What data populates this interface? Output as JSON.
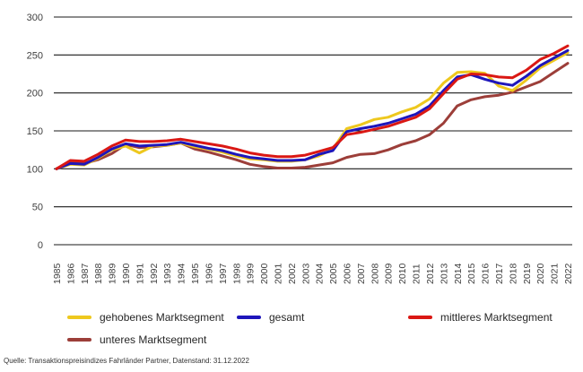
{
  "chart_data": {
    "type": "line",
    "title": "",
    "xlabel": "",
    "ylabel": "",
    "x": [
      "1985",
      "1986",
      "1987",
      "1988",
      "1989",
      "1990",
      "1991",
      "1992",
      "1993",
      "1994",
      "1995",
      "1996",
      "1997",
      "1998",
      "1999",
      "2000",
      "2001",
      "2002",
      "2003",
      "2004",
      "2005",
      "2006",
      "2007",
      "2008",
      "2009",
      "2010",
      "2011",
      "2012",
      "2013",
      "2014",
      "2015",
      "2016",
      "2017",
      "2018",
      "2019",
      "2020",
      "2021",
      "2022"
    ],
    "ylim": [
      0,
      300
    ],
    "yticks": [
      0,
      50,
      100,
      150,
      200,
      250,
      300
    ],
    "grid": "horizontal",
    "legend_position": "bottom",
    "series": [
      {
        "id": "gehobenes",
        "name": "gehobenes Marktsegment",
        "color": "#eec81e",
        "values": [
          100,
          106,
          105,
          114,
          125,
          130,
          121,
          130,
          131,
          134,
          129,
          126,
          122,
          117,
          113,
          112,
          110,
          110,
          112,
          117,
          126,
          153,
          158,
          165,
          168,
          175,
          181,
          192,
          213,
          227,
          228,
          226,
          209,
          203,
          217,
          233,
          243,
          253
        ]
      },
      {
        "id": "gesamt",
        "name": "gesamt",
        "color": "#1e16bb",
        "values": [
          100,
          107,
          106,
          115,
          126,
          133,
          130,
          131,
          132,
          135,
          131,
          127,
          124,
          119,
          115,
          113,
          111,
          111,
          112,
          119,
          124,
          149,
          153,
          156,
          160,
          166,
          172,
          183,
          203,
          221,
          224,
          218,
          213,
          210,
          222,
          236,
          246,
          256
        ]
      },
      {
        "id": "mittleres",
        "name": "mittleres Marktsegment",
        "color": "#da1814",
        "values": [
          100,
          111,
          110,
          119,
          130,
          138,
          136,
          136,
          137,
          139,
          136,
          133,
          130,
          126,
          121,
          118,
          116,
          116,
          118,
          123,
          128,
          145,
          148,
          152,
          156,
          162,
          168,
          179,
          199,
          218,
          225,
          224,
          221,
          220,
          230,
          244,
          252,
          262
        ]
      },
      {
        "id": "unteres",
        "name": "unteres Marktsegment",
        "color": "#9c3e39",
        "values": [
          100,
          108,
          107,
          112,
          120,
          132,
          128,
          129,
          131,
          134,
          126,
          122,
          117,
          112,
          106,
          103,
          101,
          101,
          102,
          105,
          108,
          115,
          119,
          120,
          125,
          132,
          137,
          145,
          160,
          183,
          191,
          195,
          197,
          201,
          208,
          215,
          227,
          239
        ]
      }
    ],
    "legend_order": [
      "gehobenes",
      "gesamt",
      "mittleres",
      "unteres"
    ],
    "draw_order": [
      "unteres",
      "gehobenes",
      "gesamt",
      "mittleres"
    ],
    "axis_color": "#1a1a1a",
    "tick_label_color": "#404040"
  },
  "source_note": "Quelle: Transaktionspreisindizes Fahrländer Partner, Datenstand: 31.12.2022"
}
